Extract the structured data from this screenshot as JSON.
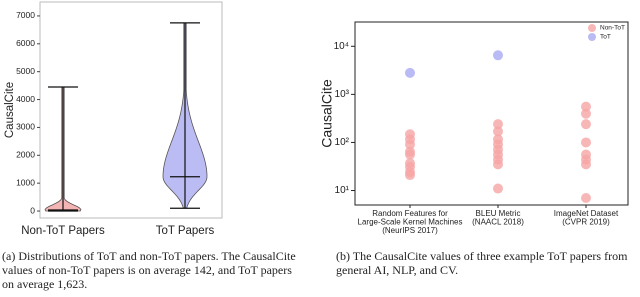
{
  "chart_data": [
    {
      "type": "violin",
      "ylabel": "CausalCite",
      "categories": [
        "Non-ToT Papers",
        "ToT Papers"
      ],
      "min": [
        0,
        100
      ],
      "median": [
        40,
        1230
      ],
      "max": [
        4450,
        6750
      ],
      "colors": [
        "#f4b4b4",
        "#bcbcf4"
      ],
      "ylim": [
        -250,
        7500
      ],
      "yticks": [
        0,
        1000,
        2000,
        3000,
        4000,
        5000,
        6000,
        7000
      ],
      "caption": "(a) Distributions of ToT and non-ToT papers. The CausalCite values of non-ToT papers is on average 142, and ToT papers on average 1,623."
    },
    {
      "type": "scatter",
      "ylabel": "CausalCite",
      "log_scale": true,
      "categories": [
        [
          "Random Features for",
          "Large-Scale Kernel Machines",
          "(NeurIPS 2017)"
        ],
        [
          "BLEU Metric",
          "(NAACL 2018)"
        ],
        [
          "ImageNet Dataset",
          "(CVPR 2019)"
        ]
      ],
      "series": [
        {
          "name": "Non-ToT",
          "color": "#f6a5a5",
          "values": [
            [
              148,
              116,
              91,
              64,
              56,
              37,
              31,
              24,
              21
            ],
            [
              240,
              170,
              116,
              91,
              71,
              56,
              44,
              35,
              11
            ],
            [
              555,
              395,
              240,
              100,
              56,
              44,
              35,
              7
            ]
          ]
        },
        {
          "name": "ToT",
          "color": "#a9a9f3",
          "values": [
            [
              2800
            ],
            [
              6500
            ],
            []
          ]
        }
      ],
      "ylim": [
        5,
        32000
      ],
      "yticks": [
        {
          "value": 10,
          "label": "10¹"
        },
        {
          "value": 100,
          "label": "10²"
        },
        {
          "value": 1000,
          "label": "10³"
        },
        {
          "value": 10000,
          "label": "10⁴"
        }
      ],
      "legend": "upper right",
      "caption": "(b) The CausalCite values of three example ToT papers from general AI, NLP, and CV."
    }
  ]
}
